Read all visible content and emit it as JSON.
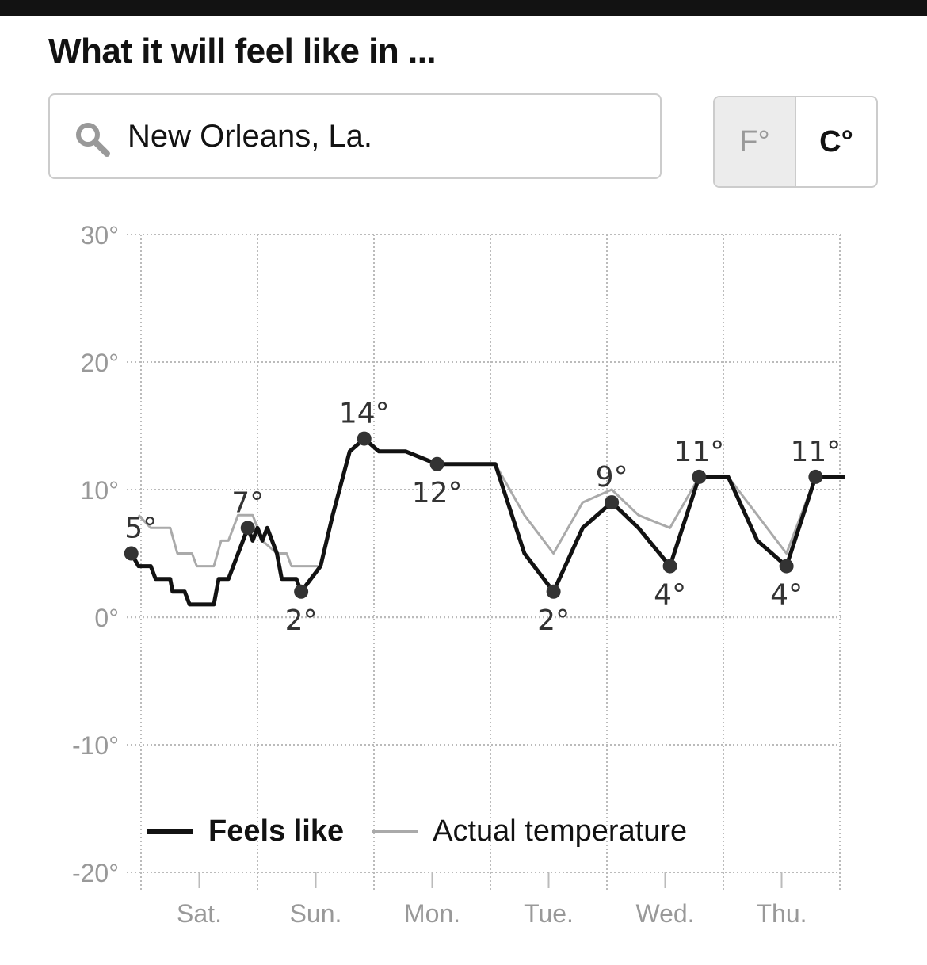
{
  "header": {
    "title": "What it will feel like in ..."
  },
  "search": {
    "value": "New Orleans, La.",
    "icon": "search-icon"
  },
  "units": {
    "f_label": "F°",
    "c_label": "C°",
    "selected": "C°"
  },
  "colors": {
    "feels": "#121212",
    "actual": "#aaaaaa",
    "grid": "#bbbbbb",
    "tick": "#999999"
  },
  "chart_data": {
    "type": "line",
    "title": "What it will feel like in ...",
    "ylim": [
      -20,
      30
    ],
    "yticks": [
      30,
      20,
      10,
      0,
      -10,
      -20
    ],
    "ytick_labels": [
      "30°",
      "20°",
      "10°",
      "0°",
      "-10°",
      "-20°"
    ],
    "x_unit": "hours from start of Saturday",
    "xlim": [
      -2,
      146
    ],
    "days": [
      "Sat.",
      "Sun.",
      "Mon.",
      "Tue.",
      "Wed.",
      "Thu."
    ],
    "legend": {
      "feels_label": "Feels like",
      "actual_label": "Actual temperature",
      "placement": "bottom-left"
    },
    "series": [
      {
        "name": "Feels like",
        "points": [
          [
            -2,
            5
          ],
          [
            -0.5,
            4
          ],
          [
            2,
            4
          ],
          [
            3,
            3
          ],
          [
            6,
            3
          ],
          [
            6.5,
            2
          ],
          [
            9,
            2
          ],
          [
            10,
            1
          ],
          [
            15,
            1
          ],
          [
            16,
            3
          ],
          [
            18,
            3
          ],
          [
            22,
            7
          ],
          [
            23,
            6
          ],
          [
            24,
            7
          ],
          [
            25,
            6
          ],
          [
            26,
            7
          ],
          [
            28,
            5
          ],
          [
            29,
            3
          ],
          [
            32,
            3
          ],
          [
            33,
            2
          ],
          [
            37,
            4
          ],
          [
            39.5,
            8
          ],
          [
            43,
            13
          ],
          [
            46,
            14
          ],
          [
            49,
            13
          ],
          [
            54.5,
            13
          ],
          [
            61,
            12
          ],
          [
            73,
            12
          ],
          [
            79,
            5
          ],
          [
            85,
            2
          ],
          [
            91,
            7
          ],
          [
            97,
            9
          ],
          [
            102.5,
            7
          ],
          [
            109,
            4
          ],
          [
            115,
            11
          ],
          [
            121,
            11
          ],
          [
            127,
            6
          ],
          [
            133,
            4
          ],
          [
            139,
            11
          ],
          [
            145,
            11
          ]
        ]
      },
      {
        "name": "Actual temperature",
        "points": [
          [
            -0.5,
            8
          ],
          [
            2,
            7
          ],
          [
            6,
            7
          ],
          [
            7.5,
            5
          ],
          [
            10.5,
            5
          ],
          [
            11.5,
            4
          ],
          [
            15,
            4
          ],
          [
            16.5,
            6
          ],
          [
            18,
            6
          ],
          [
            20,
            8
          ],
          [
            23,
            8
          ],
          [
            25,
            6
          ],
          [
            28,
            5
          ],
          [
            30,
            5
          ],
          [
            31,
            4
          ],
          [
            37,
            4
          ],
          [
            39.5,
            8
          ],
          [
            43,
            13
          ],
          [
            46,
            14
          ],
          [
            49,
            13
          ],
          [
            54.5,
            13
          ],
          [
            61,
            12
          ],
          [
            73,
            12
          ],
          [
            79,
            8
          ],
          [
            85,
            5
          ],
          [
            91,
            9
          ],
          [
            97,
            10
          ],
          [
            102.5,
            8
          ],
          [
            109,
            7
          ],
          [
            115,
            11
          ],
          [
            121,
            11
          ],
          [
            127,
            8
          ],
          [
            133,
            5
          ],
          [
            139,
            11
          ],
          [
            145,
            11
          ]
        ]
      }
    ],
    "annotations": [
      {
        "h": -2,
        "t": 5,
        "label": "5°",
        "pos": "above"
      },
      {
        "h": 22,
        "t": 7,
        "label": "7°",
        "pos": "above"
      },
      {
        "h": 33,
        "t": 2,
        "label": "2°",
        "pos": "below"
      },
      {
        "h": 46,
        "t": 14,
        "label": "14°",
        "pos": "above"
      },
      {
        "h": 61,
        "t": 12,
        "label": "12°",
        "pos": "below"
      },
      {
        "h": 85,
        "t": 2,
        "label": "2°",
        "pos": "below"
      },
      {
        "h": 97,
        "t": 9,
        "label": "9°",
        "pos": "above"
      },
      {
        "h": 109,
        "t": 4,
        "label": "4°",
        "pos": "below"
      },
      {
        "h": 115,
        "t": 11,
        "label": "11°",
        "pos": "above"
      },
      {
        "h": 133,
        "t": 4,
        "label": "4°",
        "pos": "below"
      },
      {
        "h": 139,
        "t": 11,
        "label": "11°",
        "pos": "above"
      }
    ]
  }
}
